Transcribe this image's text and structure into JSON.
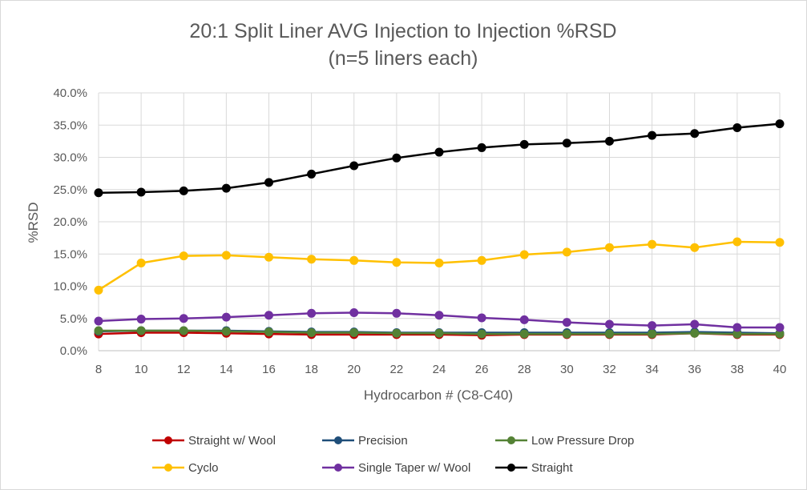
{
  "chart_data": {
    "type": "line",
    "title": "20:1 Split Liner AVG Injection to Injection %RSD",
    "subtitle": "(n=5 liners each)",
    "xlabel": "Hydrocarbon # (C8-C40)",
    "ylabel": "%RSD",
    "categories": [
      "8",
      "10",
      "12",
      "14",
      "16",
      "18",
      "20",
      "22",
      "24",
      "26",
      "28",
      "30",
      "32",
      "34",
      "36",
      "38",
      "40"
    ],
    "ylim": [
      0,
      40
    ],
    "yticks": [
      0,
      5,
      10,
      15,
      20,
      25,
      30,
      35,
      40
    ],
    "ytick_labels": [
      "0.0%",
      "5.0%",
      "10.0%",
      "15.0%",
      "20.0%",
      "25.0%",
      "30.0%",
      "35.0%",
      "40.0%"
    ],
    "grid": true,
    "legend_position": "bottom",
    "series": [
      {
        "name": "Straight w/ Wool",
        "color": "#c00000",
        "values": [
          2.6,
          2.8,
          2.8,
          2.7,
          2.6,
          2.5,
          2.5,
          2.5,
          2.5,
          2.4,
          2.5,
          2.5,
          2.5,
          2.5,
          2.7,
          2.5,
          2.5
        ]
      },
      {
        "name": "Precision",
        "color": "#1f4e79",
        "values": [
          3.0,
          3.1,
          3.1,
          3.1,
          3.0,
          2.9,
          2.9,
          2.8,
          2.8,
          2.8,
          2.8,
          2.8,
          2.8,
          2.8,
          2.9,
          2.8,
          2.7
        ]
      },
      {
        "name": "Low Pressure Drop",
        "color": "#548235",
        "values": [
          3.1,
          3.1,
          3.1,
          3.0,
          2.9,
          2.8,
          2.8,
          2.7,
          2.7,
          2.6,
          2.6,
          2.6,
          2.6,
          2.6,
          2.7,
          2.6,
          2.6
        ]
      },
      {
        "name": "Cyclo",
        "color": "#ffc000",
        "values": [
          9.4,
          13.6,
          14.7,
          14.8,
          14.5,
          14.2,
          14.0,
          13.7,
          13.6,
          14.0,
          14.9,
          15.3,
          16.0,
          16.5,
          16.0,
          16.9,
          16.8
        ]
      },
      {
        "name": "Single Taper w/ Wool",
        "color": "#7030a0",
        "values": [
          4.6,
          4.9,
          5.0,
          5.2,
          5.5,
          5.8,
          5.9,
          5.8,
          5.5,
          5.1,
          4.8,
          4.4,
          4.1,
          3.9,
          4.1,
          3.6,
          3.6
        ]
      },
      {
        "name": "Straight",
        "color": "#000000",
        "values": [
          24.5,
          24.6,
          24.8,
          25.2,
          26.1,
          27.4,
          28.7,
          29.9,
          30.8,
          31.5,
          32.0,
          32.2,
          32.5,
          33.4,
          33.7,
          34.6,
          35.2
        ]
      }
    ]
  }
}
